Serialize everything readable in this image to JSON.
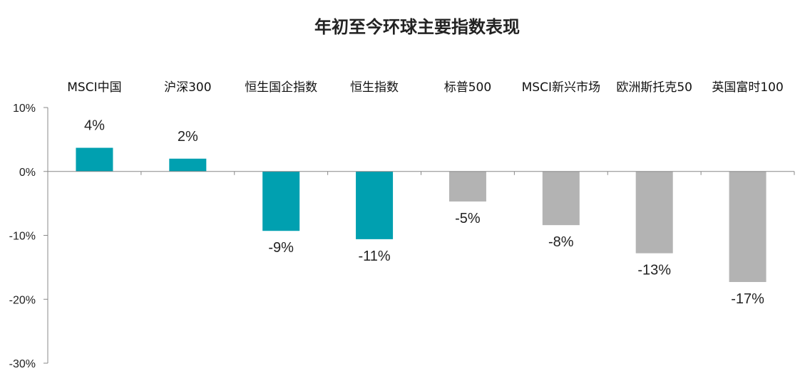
{
  "chart_data": {
    "type": "bar",
    "title": "年初至今环球主要指数表现",
    "categories": [
      "MSCI中国",
      "沪深300",
      "恒生国企指数",
      "恒生指数",
      "标普500",
      "MSCI新兴市场",
      "欧洲斯托克50",
      "英国富时100"
    ],
    "values": [
      3.7,
      2.0,
      -9.3,
      -10.6,
      -4.7,
      -8.4,
      -12.8,
      -17.3
    ],
    "data_labels": [
      "4%",
      "2%",
      "-9%",
      "-11%",
      "-5%",
      "-8%",
      "-13%",
      "-17%"
    ],
    "bar_colors": [
      "#00A0B0",
      "#00A0B0",
      "#00A0B0",
      "#00A0B0",
      "#B3B3B3",
      "#B3B3B3",
      "#B3B3B3",
      "#B3B3B3"
    ],
    "yticks": [
      10,
      0,
      -10,
      -20,
      -30
    ],
    "ytick_labels": [
      "10%",
      "0%",
      "-10%",
      "-20%",
      "-30%"
    ],
    "ylim": [
      -30,
      10
    ],
    "xlabel": "",
    "ylabel": "",
    "grid": false,
    "category_labels_position": "top"
  }
}
